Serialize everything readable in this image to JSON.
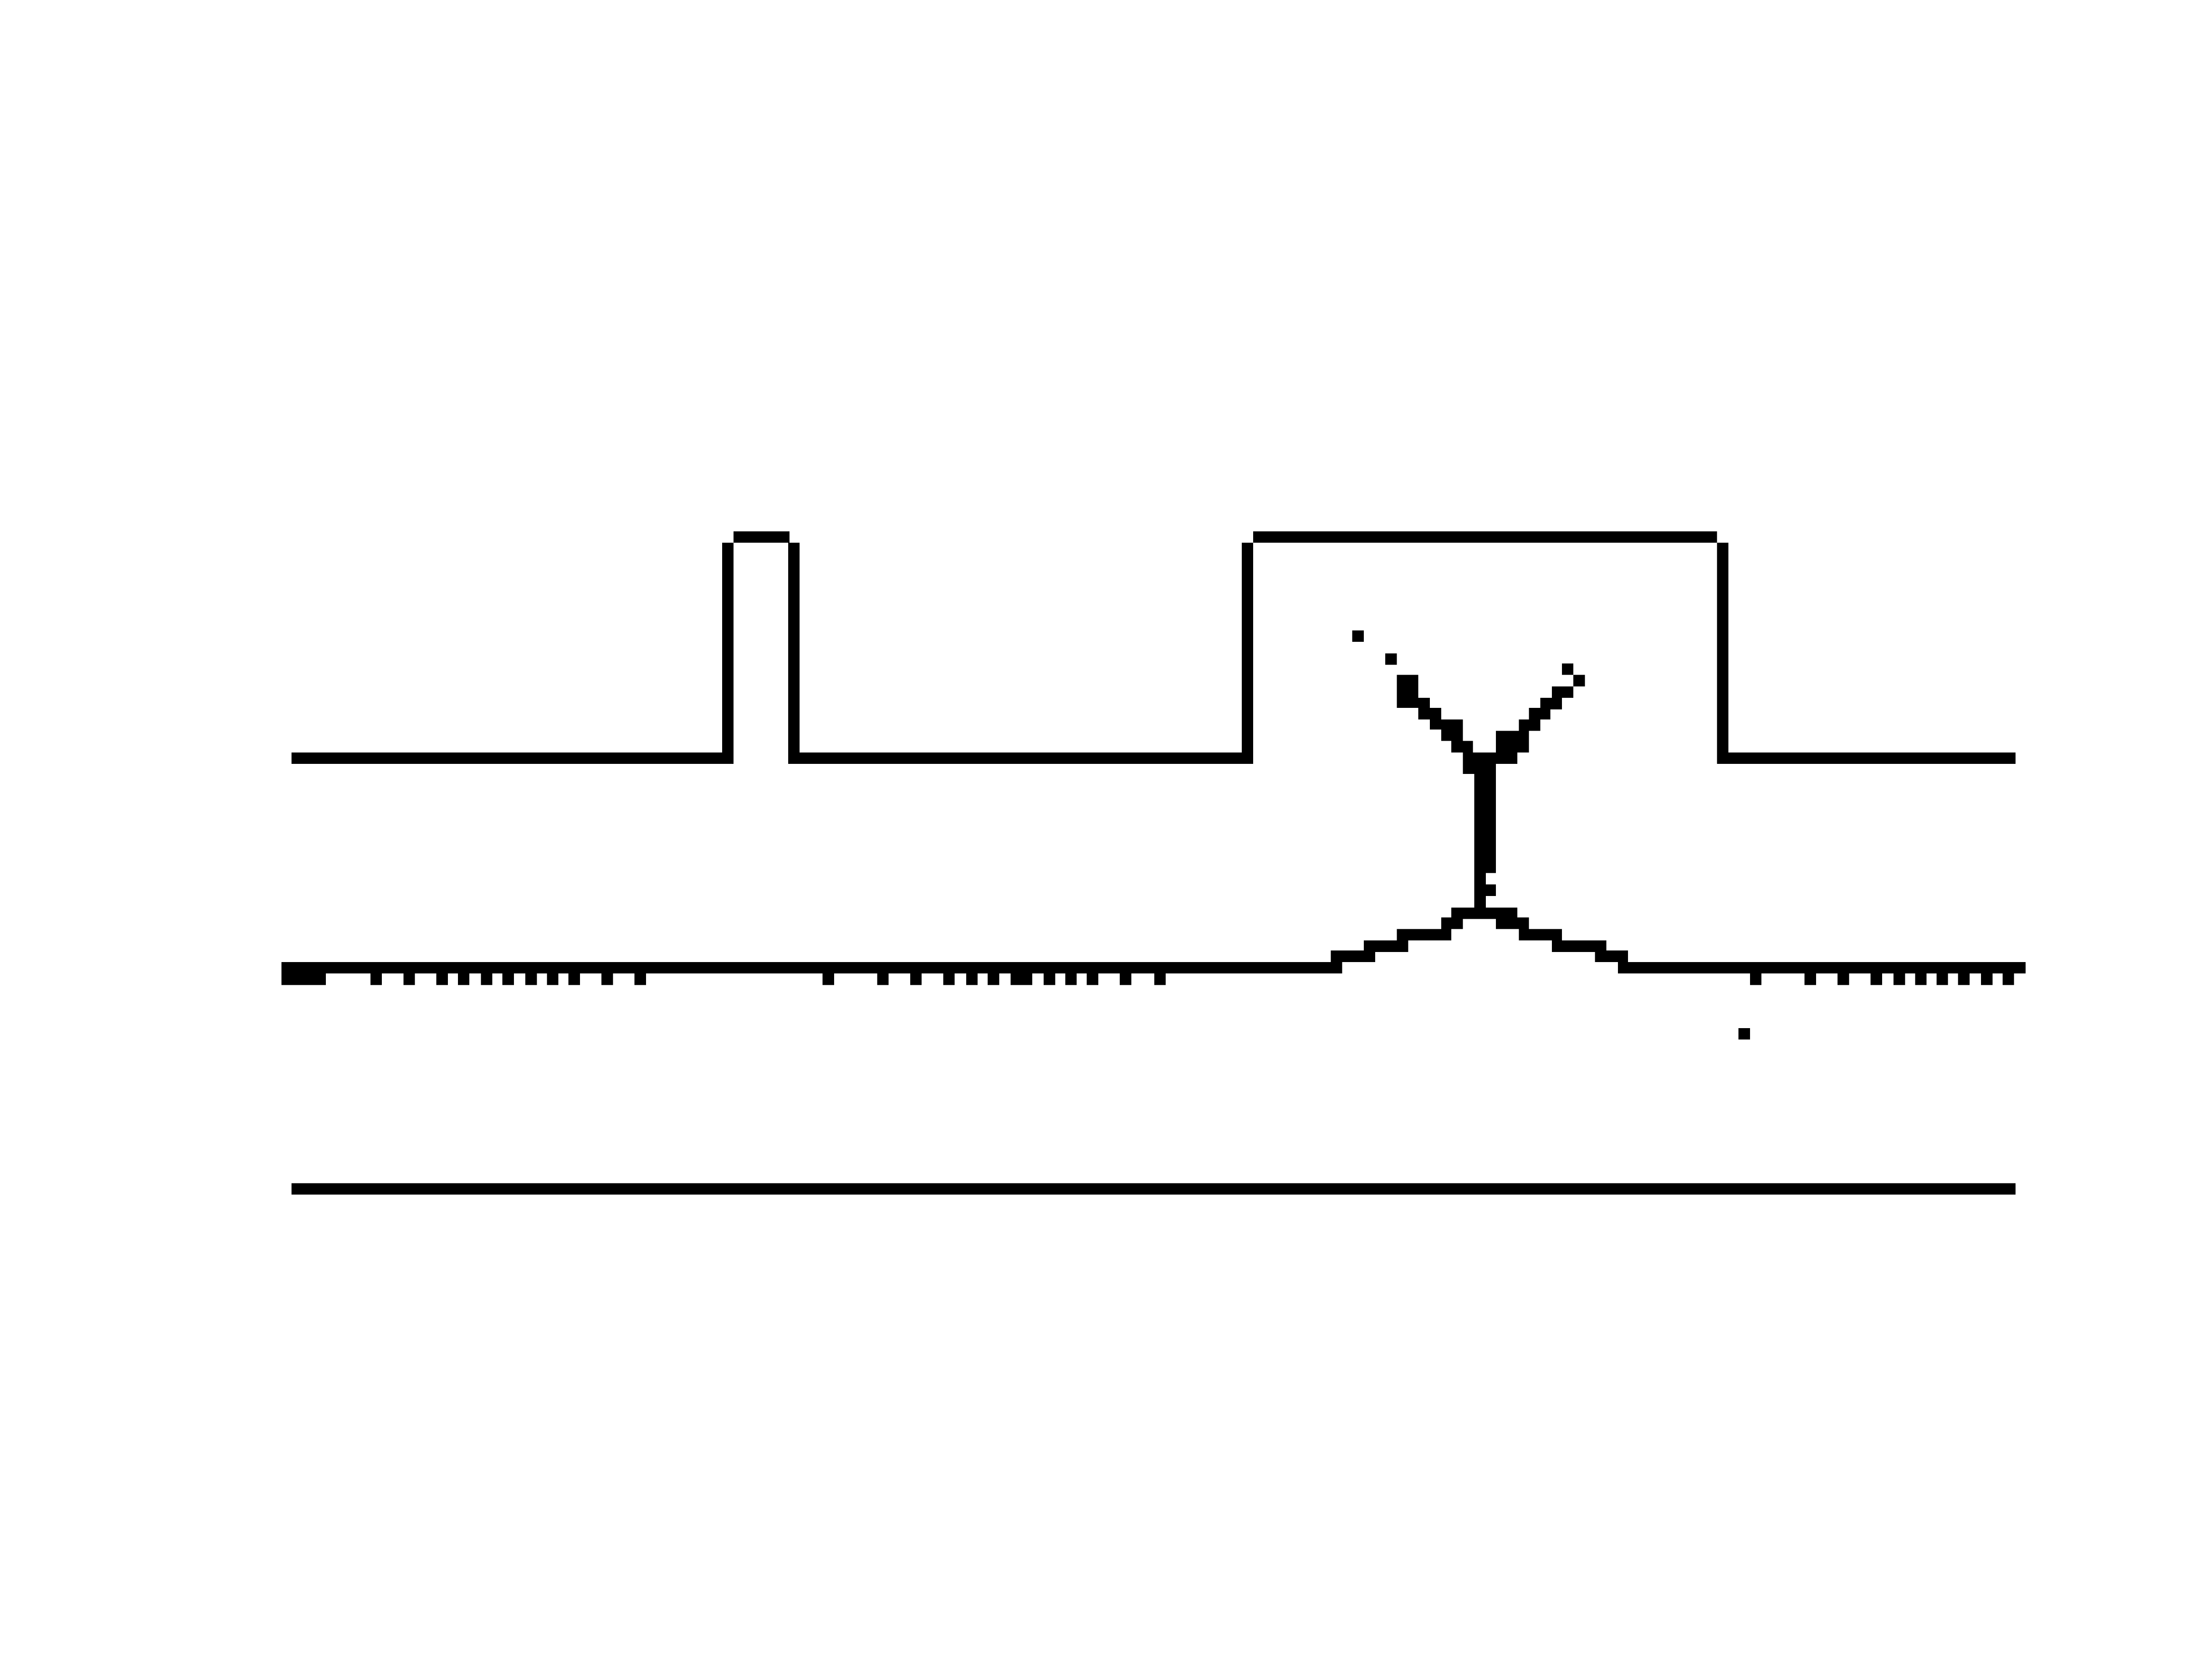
{
  "colors": {
    "background": "#ffffff",
    "ink": "#000000"
  }
}
